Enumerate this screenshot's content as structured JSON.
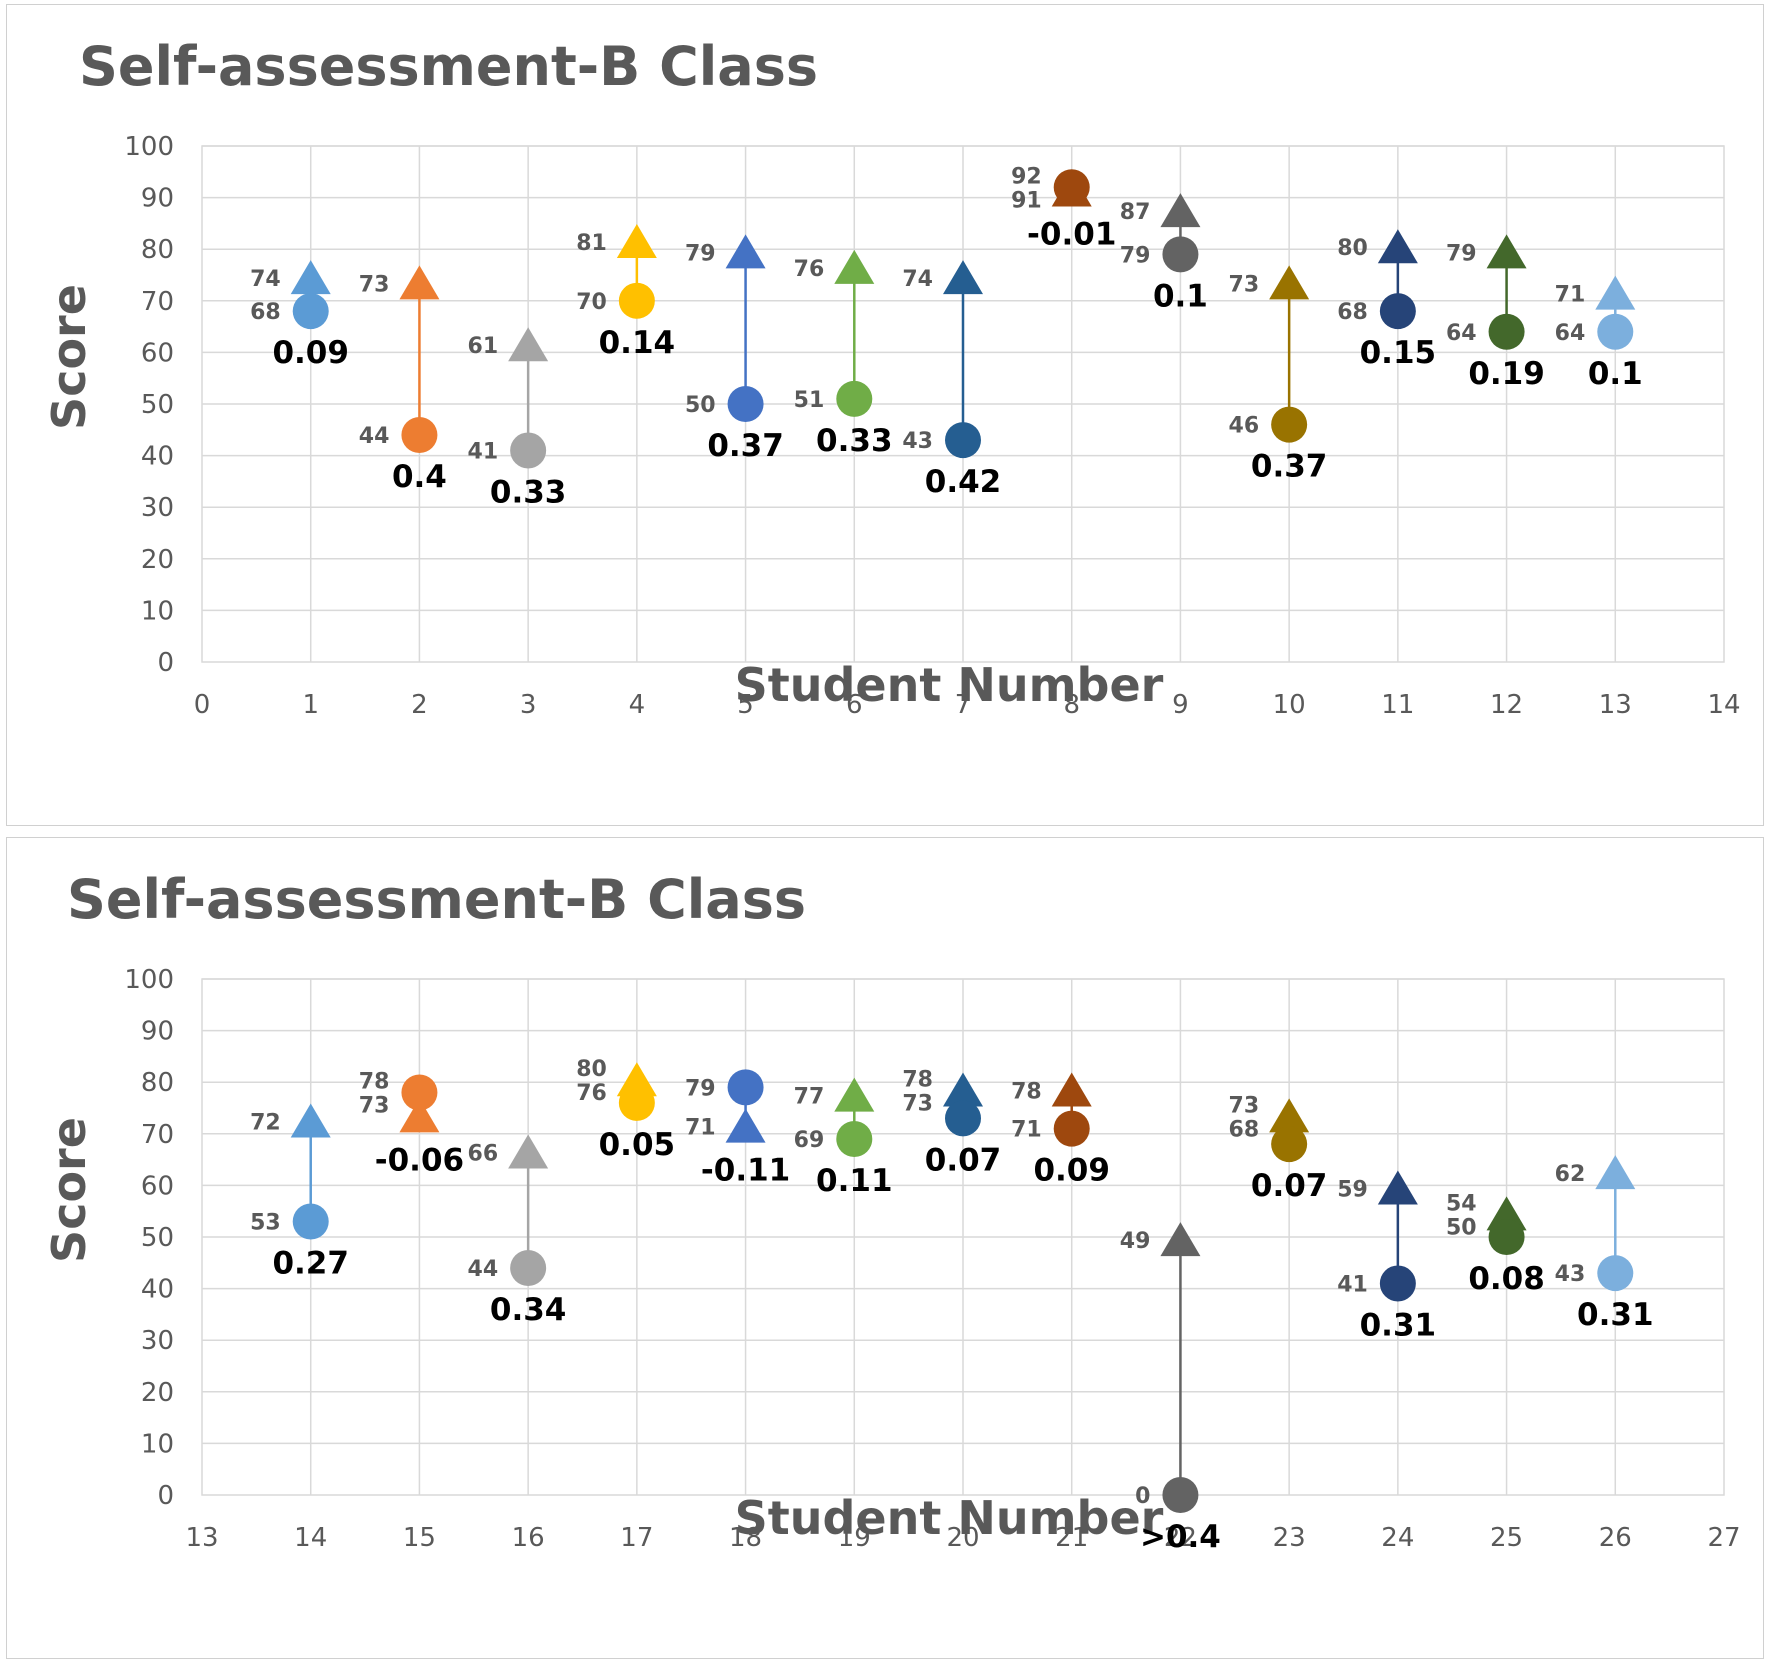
{
  "chart_data": [
    {
      "type": "scatter",
      "title": "Self-assessment-B Class",
      "xlabel": "Student Number",
      "ylabel": "Score",
      "xlim": [
        0,
        14
      ],
      "ylim": [
        0,
        100
      ],
      "x_ticks": [
        "0",
        "1",
        "2",
        "3",
        "4",
        "5",
        "6",
        "7",
        "8",
        "9",
        "10",
        "11",
        "12",
        "13",
        "14"
      ],
      "y_ticks": [
        "0",
        "10",
        "20",
        "30",
        "40",
        "50",
        "60",
        "70",
        "80",
        "90",
        "100"
      ],
      "grid": true,
      "points": [
        {
          "x": 1,
          "pre": 68,
          "post": 74,
          "gain": "0.09",
          "color": "#5B9BD5"
        },
        {
          "x": 2,
          "pre": 44,
          "post": 73,
          "gain": "0.4",
          "color": "#ED7D31"
        },
        {
          "x": 3,
          "pre": 41,
          "post": 61,
          "gain": "0.33",
          "color": "#A5A5A5"
        },
        {
          "x": 4,
          "pre": 70,
          "post": 81,
          "gain": "0.14",
          "color": "#FFC000"
        },
        {
          "x": 5,
          "pre": 50,
          "post": 79,
          "gain": "0.37",
          "color": "#4472C4"
        },
        {
          "x": 6,
          "pre": 51,
          "post": 76,
          "gain": "0.33",
          "color": "#70AD47"
        },
        {
          "x": 7,
          "pre": 43,
          "post": 74,
          "gain": "0.42",
          "color": "#255E91"
        },
        {
          "x": 8,
          "pre": 92,
          "post": 91,
          "gain": "-0.01",
          "color": "#9E480E"
        },
        {
          "x": 9,
          "pre": 79,
          "post": 87,
          "gain": "0.1",
          "color": "#636363"
        },
        {
          "x": 10,
          "pre": 46,
          "post": 73,
          "gain": "0.37",
          "color": "#997300"
        },
        {
          "x": 11,
          "pre": 68,
          "post": 80,
          "gain": "0.15",
          "color": "#264478"
        },
        {
          "x": 12,
          "pre": 64,
          "post": 79,
          "gain": "0.19",
          "color": "#43682B"
        },
        {
          "x": 13,
          "pre": 64,
          "post": 71,
          "gain": "0.1",
          "color": "#7CAFDD"
        }
      ]
    },
    {
      "type": "scatter",
      "title": "Self-assessment-B Class",
      "xlabel": "Student Number",
      "ylabel": "Score",
      "xlim": [
        13,
        27
      ],
      "ylim": [
        0,
        100
      ],
      "x_ticks": [
        "13",
        "14",
        "15",
        "16",
        "17",
        "18",
        "19",
        "20",
        "21",
        "22",
        "23",
        "24",
        "25",
        "26",
        "27"
      ],
      "y_ticks": [
        "0",
        "10",
        "20",
        "30",
        "40",
        "50",
        "60",
        "70",
        "80",
        "90",
        "100"
      ],
      "grid": true,
      "points": [
        {
          "x": 14,
          "pre": 53,
          "post": 72,
          "gain": "0.27",
          "color": "#5B9BD5"
        },
        {
          "x": 15,
          "pre": 78,
          "post": 73,
          "gain": "-0.06",
          "color": "#ED7D31"
        },
        {
          "x": 16,
          "pre": 44,
          "post": 66,
          "gain": "0.34",
          "color": "#A5A5A5"
        },
        {
          "x": 17,
          "pre": 76,
          "post": 80,
          "gain": "0.05",
          "color": "#FFC000"
        },
        {
          "x": 18,
          "pre": 79,
          "post": 71,
          "gain": "-0.11",
          "color": "#4472C4"
        },
        {
          "x": 19,
          "pre": 69,
          "post": 77,
          "gain": "0.11",
          "color": "#70AD47"
        },
        {
          "x": 20,
          "pre": 73,
          "post": 78,
          "gain": "0.07",
          "color": "#255E91"
        },
        {
          "x": 21,
          "pre": 71,
          "post": 78,
          "gain": "0.09",
          "color": "#9E480E"
        },
        {
          "x": 22,
          "pre": 0,
          "post": 49,
          "gain": ">0.4",
          "color": "#636363"
        },
        {
          "x": 23,
          "pre": 68,
          "post": 73,
          "gain": "0.07",
          "color": "#997300"
        },
        {
          "x": 24,
          "pre": 41,
          "post": 59,
          "gain": "0.31",
          "color": "#264478"
        },
        {
          "x": 25,
          "pre": 50,
          "post": 54,
          "gain": "0.08",
          "color": "#43682B"
        },
        {
          "x": 26,
          "pre": 43,
          "post": 62,
          "gain": "0.31",
          "color": "#7CAFDD"
        }
      ]
    }
  ]
}
